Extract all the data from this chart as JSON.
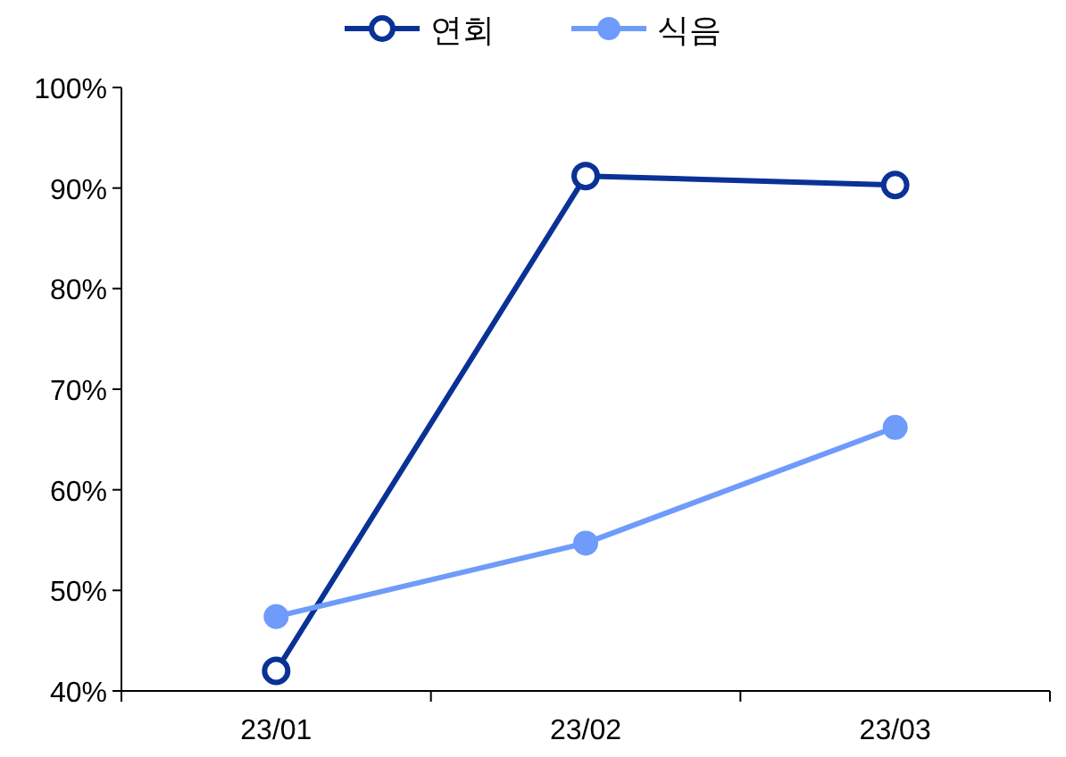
{
  "chart_data": {
    "type": "line",
    "categories": [
      "23/01",
      "23/02",
      "23/03"
    ],
    "series": [
      {
        "name": "연회",
        "color": "#0a3296",
        "values": [
          42,
          91.2,
          90.3
        ]
      },
      {
        "name": "식음",
        "color": "#6f9bfa",
        "values": [
          47.4,
          54.7,
          66.2
        ]
      }
    ],
    "ylim": [
      40,
      100
    ],
    "yticks": [
      {
        "value": 40,
        "label": "40%"
      },
      {
        "value": 50,
        "label": "50%"
      },
      {
        "value": 60,
        "label": "60%"
      },
      {
        "value": 70,
        "label": "70%"
      },
      {
        "value": 80,
        "label": "80%"
      },
      {
        "value": 90,
        "label": "90%"
      },
      {
        "value": 100,
        "label": "100%"
      }
    ],
    "grid": false,
    "legend": "top",
    "marker": "circle",
    "line_style": "solid"
  }
}
